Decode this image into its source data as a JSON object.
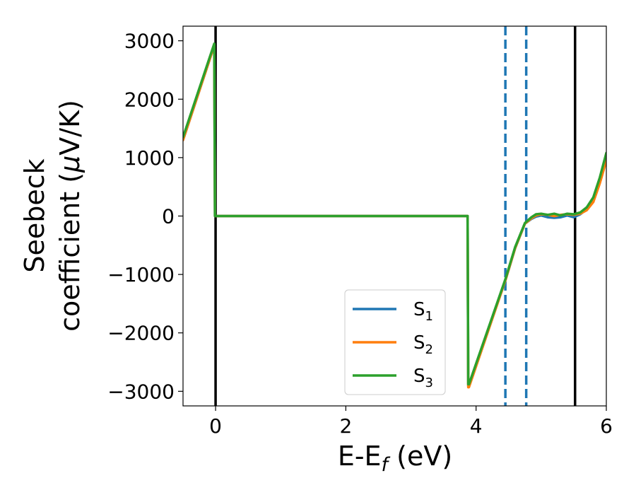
{
  "chart_data": {
    "type": "line",
    "xlabel_main": "E-E",
    "xlabel_sub": "f",
    "xlabel_unit": " (eV)",
    "ylabel_line1": "Seebeck",
    "ylabel_line2_prefix": "coefficient  (",
    "ylabel_line2_mu": "μ",
    "ylabel_line2_suffix": "V/K)",
    "xlim": [
      -0.5,
      6.0
    ],
    "ylim": [
      -3250,
      3250
    ],
    "xticks": [
      0,
      2,
      4,
      6
    ],
    "xtick_labels": [
      "0",
      "2",
      "4",
      "6"
    ],
    "yticks": [
      -3000,
      -2000,
      -1000,
      0,
      1000,
      2000,
      3000
    ],
    "ytick_labels": [
      "−3000",
      "−2000",
      "−1000",
      "0",
      "1000",
      "2000",
      "3000"
    ],
    "grid": false,
    "legend_position": "lower-center",
    "series": [
      {
        "name": "S",
        "subscript": "1",
        "color": "#1f77b4",
        "x": [
          -0.5,
          -0.02,
          -0.01,
          0.0,
          3.87,
          3.88,
          3.89,
          4.45,
          4.6,
          4.75,
          4.85,
          4.92,
          5.0,
          5.1,
          5.2,
          5.3,
          5.4,
          5.5,
          5.6,
          5.7,
          5.8,
          5.9,
          6.0
        ],
        "y": [
          1300,
          2920,
          0,
          0,
          0,
          -2900,
          -2900,
          -1100,
          -550,
          -130,
          -50,
          -10,
          10,
          -20,
          -30,
          -20,
          10,
          -20,
          30,
          120,
          280,
          600,
          1000
        ]
      },
      {
        "name": "S",
        "subscript": "2",
        "color": "#ff7f0e",
        "x": [
          -0.5,
          -0.02,
          -0.01,
          0.0,
          3.87,
          3.88,
          3.89,
          4.45,
          4.6,
          4.75,
          4.85,
          4.92,
          5.0,
          5.1,
          5.2,
          5.3,
          5.4,
          5.5,
          5.6,
          5.7,
          5.8,
          5.9,
          6.0
        ],
        "y": [
          1300,
          2920,
          0,
          0,
          0,
          -2930,
          -2930,
          -1100,
          -550,
          -130,
          -40,
          10,
          30,
          20,
          0,
          20,
          30,
          20,
          40,
          100,
          240,
          560,
          950
        ]
      },
      {
        "name": "S",
        "subscript": "3",
        "color": "#2ca02c",
        "x": [
          -0.5,
          -0.02,
          -0.01,
          0.0,
          3.87,
          3.88,
          3.89,
          4.45,
          4.6,
          4.75,
          4.85,
          4.92,
          5.0,
          5.1,
          5.2,
          5.3,
          5.4,
          5.5,
          5.6,
          5.7,
          5.8,
          5.9,
          6.0
        ],
        "y": [
          1350,
          2950,
          0,
          0,
          0,
          -2880,
          -2880,
          -1080,
          -530,
          -120,
          -20,
          30,
          40,
          20,
          40,
          10,
          40,
          30,
          60,
          150,
          320,
          660,
          1080
        ]
      }
    ],
    "vlines": [
      {
        "x": 0.0,
        "color": "#000000",
        "style": "solid"
      },
      {
        "x": 5.52,
        "color": "#000000",
        "style": "solid"
      },
      {
        "x": 4.45,
        "color": "#1f77b4",
        "style": "dashed"
      },
      {
        "x": 4.77,
        "color": "#1f77b4",
        "style": "dashed"
      }
    ]
  }
}
